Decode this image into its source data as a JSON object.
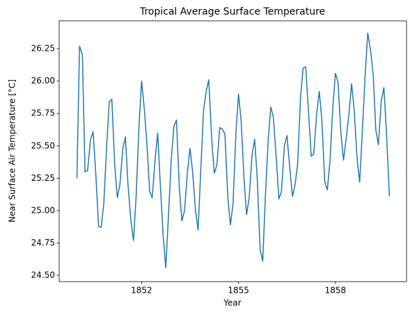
{
  "chart_data": {
    "type": "line",
    "title": "Tropical Average Surface Temperature",
    "x_label": "Year",
    "y_label": "Near Surface Air Temperature [°C]",
    "x": [
      1850.0,
      1850.08,
      1850.17,
      1850.25,
      1850.33,
      1850.42,
      1850.5,
      1850.58,
      1850.67,
      1850.75,
      1850.83,
      1850.92,
      1851.0,
      1851.08,
      1851.17,
      1851.25,
      1851.33,
      1851.42,
      1851.5,
      1851.58,
      1851.67,
      1851.75,
      1851.83,
      1851.92,
      1852.0,
      1852.08,
      1852.17,
      1852.25,
      1852.33,
      1852.42,
      1852.5,
      1852.58,
      1852.67,
      1852.75,
      1852.83,
      1852.92,
      1853.0,
      1853.08,
      1853.17,
      1853.25,
      1853.33,
      1853.42,
      1853.5,
      1853.58,
      1853.67,
      1853.75,
      1853.83,
      1853.92,
      1854.0,
      1854.08,
      1854.17,
      1854.25,
      1854.33,
      1854.42,
      1854.5,
      1854.58,
      1854.67,
      1854.75,
      1854.83,
      1854.92,
      1855.0,
      1855.08,
      1855.17,
      1855.25,
      1855.33,
      1855.42,
      1855.5,
      1855.58,
      1855.67,
      1855.75,
      1855.83,
      1855.92,
      1856.0,
      1856.08,
      1856.17,
      1856.25,
      1856.33,
      1856.42,
      1856.5,
      1856.58,
      1856.67,
      1856.75,
      1856.83,
      1856.92,
      1857.0,
      1857.08,
      1857.17,
      1857.25,
      1857.33,
      1857.42,
      1857.5,
      1857.58,
      1857.67,
      1857.75,
      1857.83,
      1857.92,
      1858.0,
      1858.08,
      1858.17,
      1858.25,
      1858.33,
      1858.42,
      1858.5,
      1858.58,
      1858.67,
      1858.75,
      1858.83,
      1858.92,
      1859.0,
      1859.08,
      1859.17,
      1859.25,
      1859.33,
      1859.42,
      1859.5,
      1859.58,
      1859.67
    ],
    "series": [
      {
        "color": "#1f77b4",
        "values": [
          25.25,
          26.27,
          26.2,
          25.3,
          25.31,
          25.55,
          25.61,
          25.3,
          24.88,
          24.87,
          25.05,
          25.5,
          25.84,
          25.86,
          25.35,
          25.1,
          25.2,
          25.48,
          25.57,
          25.2,
          24.92,
          24.77,
          25.1,
          25.65,
          26.0,
          25.8,
          25.5,
          25.15,
          25.1,
          25.4,
          25.6,
          25.2,
          24.8,
          24.56,
          24.95,
          25.4,
          25.65,
          25.7,
          25.17,
          24.92,
          25.0,
          25.3,
          25.48,
          25.3,
          25.0,
          24.85,
          25.3,
          25.78,
          25.92,
          26.01,
          25.55,
          25.29,
          25.35,
          25.64,
          25.63,
          25.59,
          25.1,
          24.89,
          25.05,
          25.6,
          25.9,
          25.7,
          25.25,
          24.97,
          25.1,
          25.43,
          25.55,
          25.25,
          24.7,
          24.61,
          25.1,
          25.55,
          25.8,
          25.72,
          25.4,
          25.09,
          25.15,
          25.5,
          25.58,
          25.35,
          25.11,
          25.2,
          25.36,
          25.88,
          26.1,
          26.11,
          25.75,
          25.42,
          25.44,
          25.75,
          25.92,
          25.7,
          25.22,
          25.16,
          25.38,
          25.8,
          26.06,
          25.99,
          25.6,
          25.39,
          25.55,
          25.75,
          25.98,
          25.78,
          25.4,
          25.22,
          25.6,
          26.05,
          26.37,
          26.25,
          26.05,
          25.62,
          25.51,
          25.85,
          25.95,
          25.6,
          25.11
        ]
      }
    ],
    "xlim": [
      1849.45,
      1860.2
    ],
    "xticks": [
      1852,
      1855,
      1858
    ],
    "ylim": [
      24.452,
      26.465
    ],
    "yticks": [
      {
        "value": 24.5,
        "label": "24.50"
      },
      24.75,
      {
        "value": 25,
        "label": "25.00"
      },
      25.25,
      {
        "value": 25.5,
        "label": "25.50"
      },
      25.75,
      {
        "value": 26,
        "label": "26.00"
      },
      26.25
    ],
    "grid": false
  }
}
